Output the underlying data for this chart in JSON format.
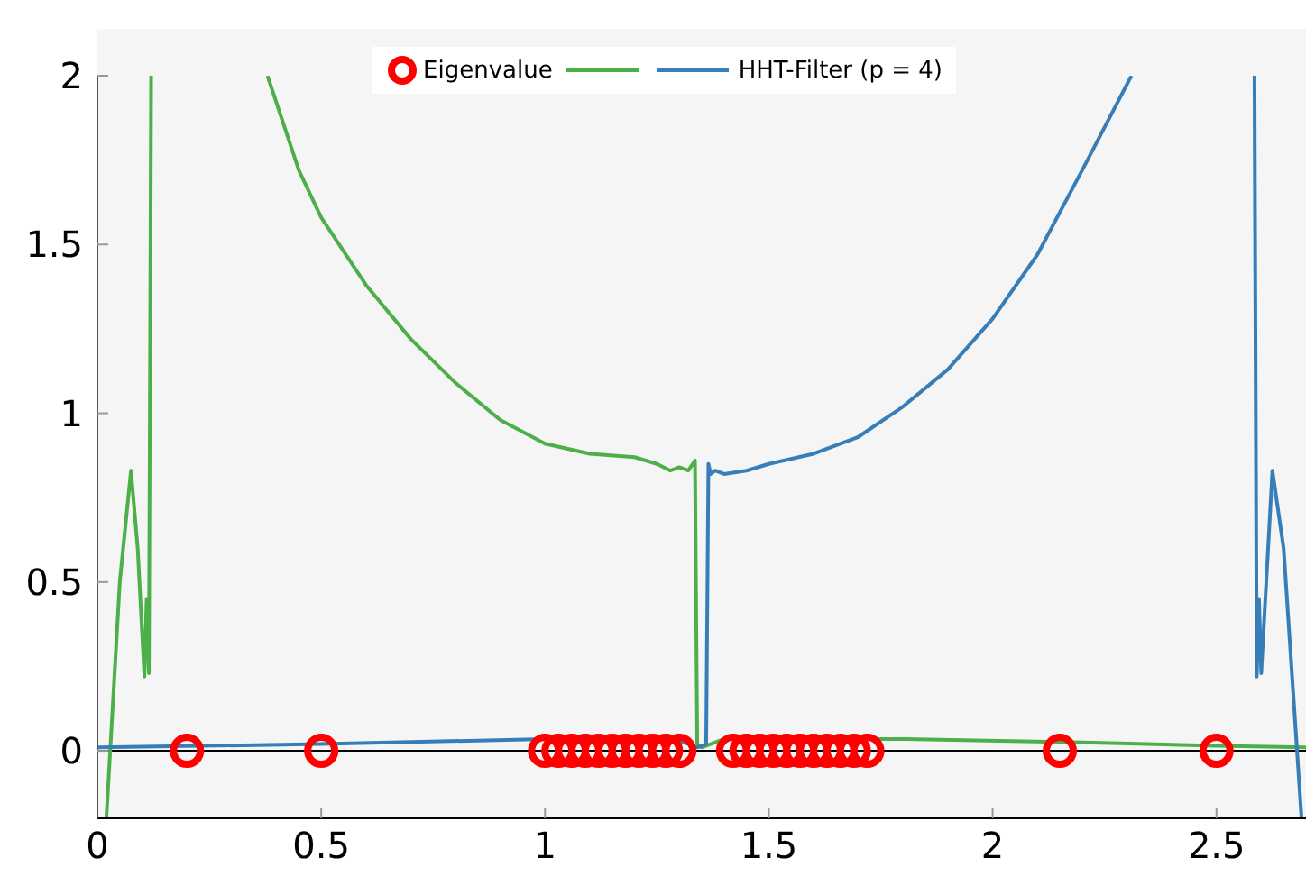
{
  "chart_data": {
    "type": "line",
    "xlim": [
      0,
      2.7
    ],
    "ylim": [
      -0.2,
      2
    ],
    "xticks": [
      0,
      0.5,
      1,
      1.5,
      2,
      2.5
    ],
    "yticks": [
      0,
      0.5,
      1,
      1.5,
      2
    ],
    "legend": "top",
    "ref_lines": [
      {
        "axis": "y",
        "value": 0,
        "color": "#000000"
      }
    ],
    "series": [
      {
        "name": "Eigenvalue",
        "type": "scatter",
        "marker": "circle",
        "color": "#ff0000",
        "x": [
          0.2,
          0.5,
          1.0,
          1.03,
          1.06,
          1.09,
          1.12,
          1.15,
          1.18,
          1.21,
          1.24,
          1.27,
          1.3,
          1.42,
          1.45,
          1.48,
          1.51,
          1.54,
          1.57,
          1.6,
          1.63,
          1.66,
          1.69,
          1.72,
          2.15,
          2.5
        ],
        "values": [
          0,
          0,
          0,
          0,
          0,
          0,
          0,
          0,
          0,
          0,
          0,
          0,
          0,
          0,
          0,
          0,
          0,
          0,
          0,
          0,
          0,
          0,
          0,
          0,
          0,
          0
        ]
      },
      {
        "color": "#4daf4a",
        "x": [
          0.02,
          0.05,
          0.075,
          0.09,
          0.105,
          0.11,
          0.115,
          0.12,
          0.25,
          0.38,
          0.45,
          0.5,
          0.6,
          0.7,
          0.8,
          0.9,
          1.0,
          1.1,
          1.2,
          1.25,
          1.28,
          1.3,
          1.32,
          1.335,
          1.34,
          1.35,
          1.37,
          1.4,
          1.6,
          1.8,
          2.2,
          2.5,
          2.7
        ],
        "values": [
          -0.2,
          0.5,
          0.83,
          0.6,
          0.22,
          0.45,
          0.23,
          2,
          null,
          2,
          1.72,
          1.58,
          1.38,
          1.22,
          1.09,
          0.98,
          0.91,
          0.88,
          0.87,
          0.85,
          0.83,
          0.84,
          0.83,
          0.86,
          0.02,
          0.01,
          0.02,
          0.035,
          0.035,
          0.035,
          0.025,
          0.015,
          0.01
        ]
      },
      {
        "name": "HHT-Filter (p = 4)",
        "color": "#377eb8",
        "x": [
          0,
          0.5,
          1.0,
          1.3,
          1.34,
          1.36,
          1.365,
          1.37,
          1.38,
          1.4,
          1.45,
          1.5,
          1.6,
          1.7,
          1.8,
          1.9,
          2.0,
          2.1,
          2.2,
          2.31,
          2.45,
          2.585,
          2.59,
          2.595,
          2.6,
          2.625,
          2.65,
          2.69
        ],
        "values": [
          0.01,
          0.02,
          0.035,
          0.03,
          0.01,
          0.02,
          0.85,
          0.82,
          0.83,
          0.82,
          0.83,
          0.85,
          0.88,
          0.93,
          1.02,
          1.13,
          1.28,
          1.47,
          1.72,
          2,
          null,
          2,
          0.22,
          0.45,
          0.23,
          0.83,
          0.6,
          -0.2
        ]
      }
    ]
  }
}
